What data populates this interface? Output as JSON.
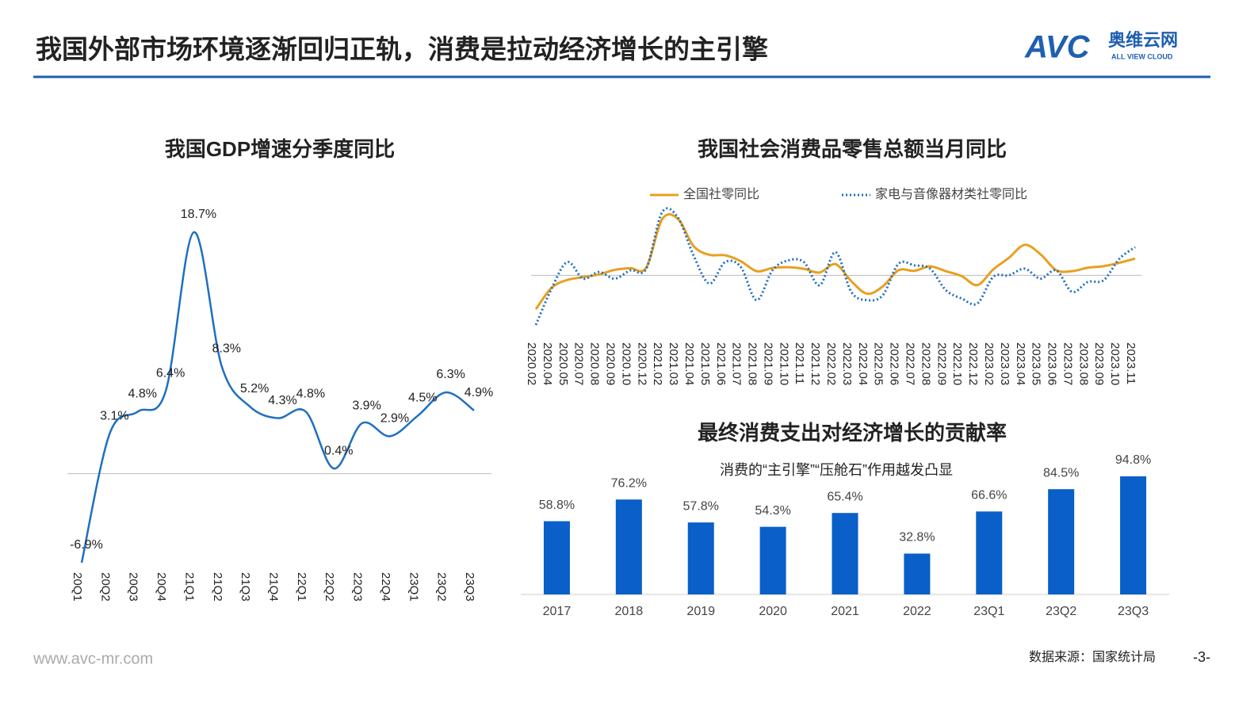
{
  "header": {
    "title": "我国外部市场环境逐渐回归正轨，消费是拉动经济增长的主引擎",
    "logo_mark": "AVC",
    "logo_name": "奥维云网",
    "logo_tagline": "ALL VIEW CLOUD"
  },
  "chart_data": [
    {
      "type": "line",
      "title": "我国GDP增速分季度同比",
      "categories": [
        "20Q1",
        "20Q2",
        "20Q3",
        "20Q4",
        "21Q1",
        "21Q2",
        "21Q3",
        "21Q4",
        "22Q1",
        "22Q2",
        "22Q3",
        "22Q4",
        "23Q1",
        "23Q2",
        "23Q3"
      ],
      "values": [
        -6.9,
        3.1,
        4.8,
        6.4,
        18.7,
        8.3,
        5.2,
        4.3,
        4.8,
        0.4,
        3.9,
        2.9,
        4.5,
        6.3,
        4.9
      ],
      "value_labels": [
        "-6.9%",
        "3.1%",
        "4.8%",
        "6.4%",
        "18.7%",
        "8.3%",
        "5.2%",
        "4.3%",
        "4.8%",
        "0.4%",
        "3.9%",
        "2.9%",
        "4.5%",
        "6.3%",
        "4.9%"
      ],
      "color": "#1f6fc0"
    },
    {
      "type": "line",
      "title": "我国社会消费品零售总额当月同比",
      "categories": [
        "2020.02",
        "2020.04",
        "2020.05",
        "2020.07",
        "2020.08",
        "2020.09",
        "2020.10",
        "2020.12",
        "2021.02",
        "2021.03",
        "2021.04",
        "2021.05",
        "2021.06",
        "2021.07",
        "2021.08",
        "2021.09",
        "2021.10",
        "2021.11",
        "2021.12",
        "2022.02",
        "2022.03",
        "2022.04",
        "2022.05",
        "2022.06",
        "2022.07",
        "2022.08",
        "2022.09",
        "2022.10",
        "2022.12",
        "2023.02",
        "2023.03",
        "2023.04",
        "2023.05",
        "2023.06",
        "2023.07",
        "2023.08",
        "2023.09",
        "2023.10",
        "2023.11"
      ],
      "series": [
        {
          "name": "全国社零同比",
          "color": "#e8a020",
          "style": "solid",
          "values": [
            -20.5,
            -7.5,
            -2.8,
            -1.1,
            0.5,
            3.3,
            4.3,
            4.6,
            33.8,
            34.2,
            17.7,
            12.4,
            12.1,
            8.5,
            2.5,
            4.4,
            4.9,
            3.9,
            1.7,
            6.7,
            -3.5,
            -11.1,
            -6.7,
            3.1,
            2.7,
            5.4,
            2.5,
            -0.5,
            -5.9,
            3.5,
            10.6,
            18.4,
            12.7,
            3.1,
            2.5,
            4.6,
            5.5,
            7.6,
            10.1
          ]
        },
        {
          "name": "家电与音像器材类社零同比",
          "color": "#1f6fc0",
          "style": "dotted",
          "values": [
            -30,
            -8,
            8,
            -2,
            2,
            -2,
            3,
            4,
            38,
            35,
            12,
            -5,
            8,
            5,
            -15,
            3,
            9,
            8,
            -6,
            14,
            -10,
            -15,
            -12,
            7,
            6,
            4,
            -9,
            -14,
            -17,
            -1,
            0,
            4,
            -2,
            3,
            -10,
            -4,
            -3,
            10,
            17
          ]
        }
      ]
    },
    {
      "type": "bar",
      "title": "最终消费支出对经济增长的贡献率",
      "subtitle": "消费的“主引擎”“压舱石”作用越发凸显",
      "categories": [
        "2017",
        "2018",
        "2019",
        "2020",
        "2021",
        "2022",
        "23Q1",
        "23Q2",
        "23Q3"
      ],
      "values": [
        58.8,
        76.2,
        57.8,
        54.3,
        65.4,
        32.8,
        66.6,
        84.5,
        94.8
      ],
      "value_labels": [
        "58.8%",
        "76.2%",
        "57.8%",
        "54.3%",
        "65.4%",
        "32.8%",
        "66.6%",
        "84.5%",
        "94.8%"
      ],
      "color": "#0a5fc8"
    }
  ],
  "footer": {
    "website": "www.avc-mr.com",
    "source": "数据来源：国家统计局",
    "page": "-3-"
  }
}
